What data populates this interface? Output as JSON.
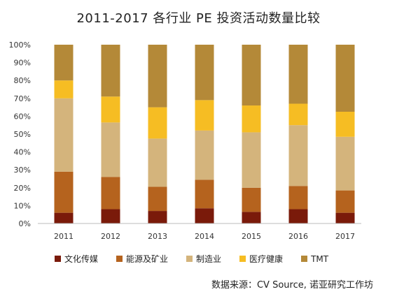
{
  "chart_data": {
    "type": "bar",
    "stacked": true,
    "title": "2011-2017 各行业 PE 投资活动数量比较",
    "xlabel": "",
    "ylabel": "",
    "ylim": [
      0,
      100
    ],
    "yticks": [
      "0%",
      "10%",
      "20%",
      "30%",
      "40%",
      "50%",
      "60%",
      "70%",
      "80%",
      "90%",
      "100%"
    ],
    "categories": [
      "2011",
      "2012",
      "2013",
      "2014",
      "2015",
      "2016",
      "2017"
    ],
    "series": [
      {
        "name": "文化传媒",
        "color": "#7a1a0a",
        "values": [
          6,
          8,
          7,
          8.5,
          6.5,
          8,
          6
        ]
      },
      {
        "name": "能源及矿业",
        "color": "#b5631e",
        "values": [
          23,
          18,
          13.5,
          16,
          13.5,
          13,
          12.5
        ]
      },
      {
        "name": "制造业",
        "color": "#d4b47c",
        "values": [
          41,
          30.5,
          27,
          27.5,
          31,
          34,
          30
        ]
      },
      {
        "name": "医疗健康",
        "color": "#f6bd23",
        "values": [
          10,
          14.5,
          17.5,
          17,
          15,
          12,
          14
        ]
      },
      {
        "name": "TMT",
        "color": "#b48938",
        "values": [
          20,
          29,
          35,
          31,
          34,
          33,
          37.5
        ]
      }
    ],
    "grid": false,
    "legend_position": "bottom"
  },
  "source_note": "数据来源：CV Source, 诺亚研究工作坊"
}
